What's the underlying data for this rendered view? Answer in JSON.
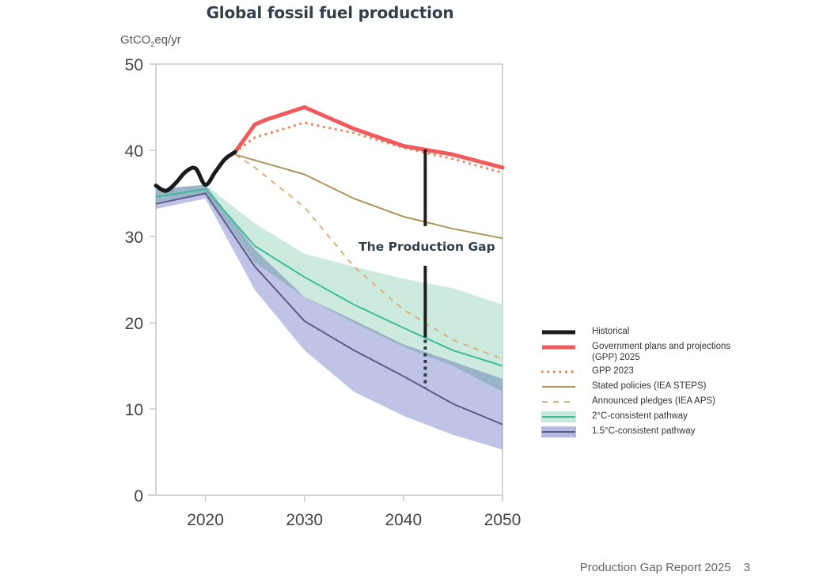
{
  "chart_data": {
    "type": "line",
    "title": "Global fossil fuel production",
    "ylabel": "GtCO₂eq/yr",
    "xlabel": "",
    "xlim": [
      2015,
      2050
    ],
    "ylim": [
      0,
      50
    ],
    "x_ticks": [
      2020,
      2030,
      2040,
      2050
    ],
    "y_ticks": [
      0,
      10,
      20,
      30,
      40,
      50
    ],
    "grid": false,
    "legend_position": "right",
    "series": [
      {
        "id": "historical",
        "name": "Historical",
        "style": "solid-thick",
        "color": "#1a1a1a",
        "x": [
          2015,
          2016,
          2017,
          2018,
          2019,
          2020,
          2021,
          2022,
          2023
        ],
        "values": [
          35.9,
          35.3,
          36.2,
          37.5,
          37.9,
          36.0,
          37.5,
          39.0,
          39.8
        ]
      },
      {
        "id": "gpp2025",
        "name": "Government plans and projections (GPP) 2025",
        "style": "solid-thick",
        "color": "#ef5b5b",
        "x": [
          2023,
          2025,
          2026,
          2030,
          2035,
          2040,
          2045,
          2050
        ],
        "values": [
          39.8,
          43.0,
          43.5,
          45.0,
          42.5,
          40.5,
          39.5,
          38.0
        ]
      },
      {
        "id": "gpp2023",
        "name": "GPP 2023",
        "style": "dotted",
        "color": "#f0845c",
        "x": [
          2023,
          2025,
          2030,
          2035,
          2040,
          2045,
          2050
        ],
        "values": [
          39.8,
          41.5,
          43.2,
          42.0,
          40.3,
          39.0,
          37.4
        ]
      },
      {
        "id": "steps",
        "name": "Stated policies (IEA STEPS)",
        "style": "solid",
        "color": "#b0925a",
        "x": [
          2023,
          2030,
          2035,
          2040,
          2045,
          2050
        ],
        "values": [
          39.5,
          37.2,
          34.4,
          32.3,
          30.9,
          29.8
        ]
      },
      {
        "id": "aps",
        "name": "Announced pledges (IEA APS)",
        "style": "dashed",
        "color": "#e0b07a",
        "x": [
          2023,
          2025,
          2030,
          2035,
          2040,
          2045,
          2050
        ],
        "values": [
          39.5,
          38.0,
          33.4,
          26.5,
          21.5,
          18.0,
          15.8
        ]
      },
      {
        "id": "c2",
        "name": "2°C-consistent pathway",
        "style": "solid-with-band",
        "color": "#3dbb9a",
        "band_color": "#c8e8dc",
        "x": [
          2015,
          2020,
          2025,
          2030,
          2035,
          2040,
          2045,
          2050
        ],
        "values": [
          34.6,
          35.5,
          28.9,
          25.3,
          22.1,
          19.4,
          16.8,
          15.0
        ],
        "band_upper": [
          35.5,
          36.0,
          31.5,
          28.0,
          26.5,
          25.1,
          24.0,
          22.1
        ],
        "band_lower": [
          34.0,
          35.0,
          27.0,
          23.0,
          20.0,
          17.2,
          15.0,
          12.0
        ]
      },
      {
        "id": "c15",
        "name": "1.5°C-consistent pathway",
        "style": "solid-with-band",
        "color": "#5a5a8c",
        "band_color": "#b4b9e0",
        "x": [
          2015,
          2020,
          2025,
          2030,
          2035,
          2040,
          2045,
          2050
        ],
        "values": [
          33.8,
          35.0,
          26.5,
          20.2,
          16.8,
          13.8,
          10.6,
          8.2
        ],
        "band_upper": [
          35.5,
          36.0,
          28.5,
          23.0,
          20.3,
          17.5,
          15.5,
          13.5
        ],
        "band_lower": [
          33.2,
          34.4,
          23.8,
          16.8,
          12.0,
          9.2,
          7.0,
          5.3
        ]
      }
    ],
    "annotations": [
      {
        "text": "The Production Gap",
        "x": 2042.2,
        "gap_top": 40.1,
        "gap_solid_bottom": 18.3,
        "gap_dotted_bottom": 12.5
      }
    ]
  },
  "footer": {
    "report": "Production Gap Report 2025",
    "page": "3"
  }
}
